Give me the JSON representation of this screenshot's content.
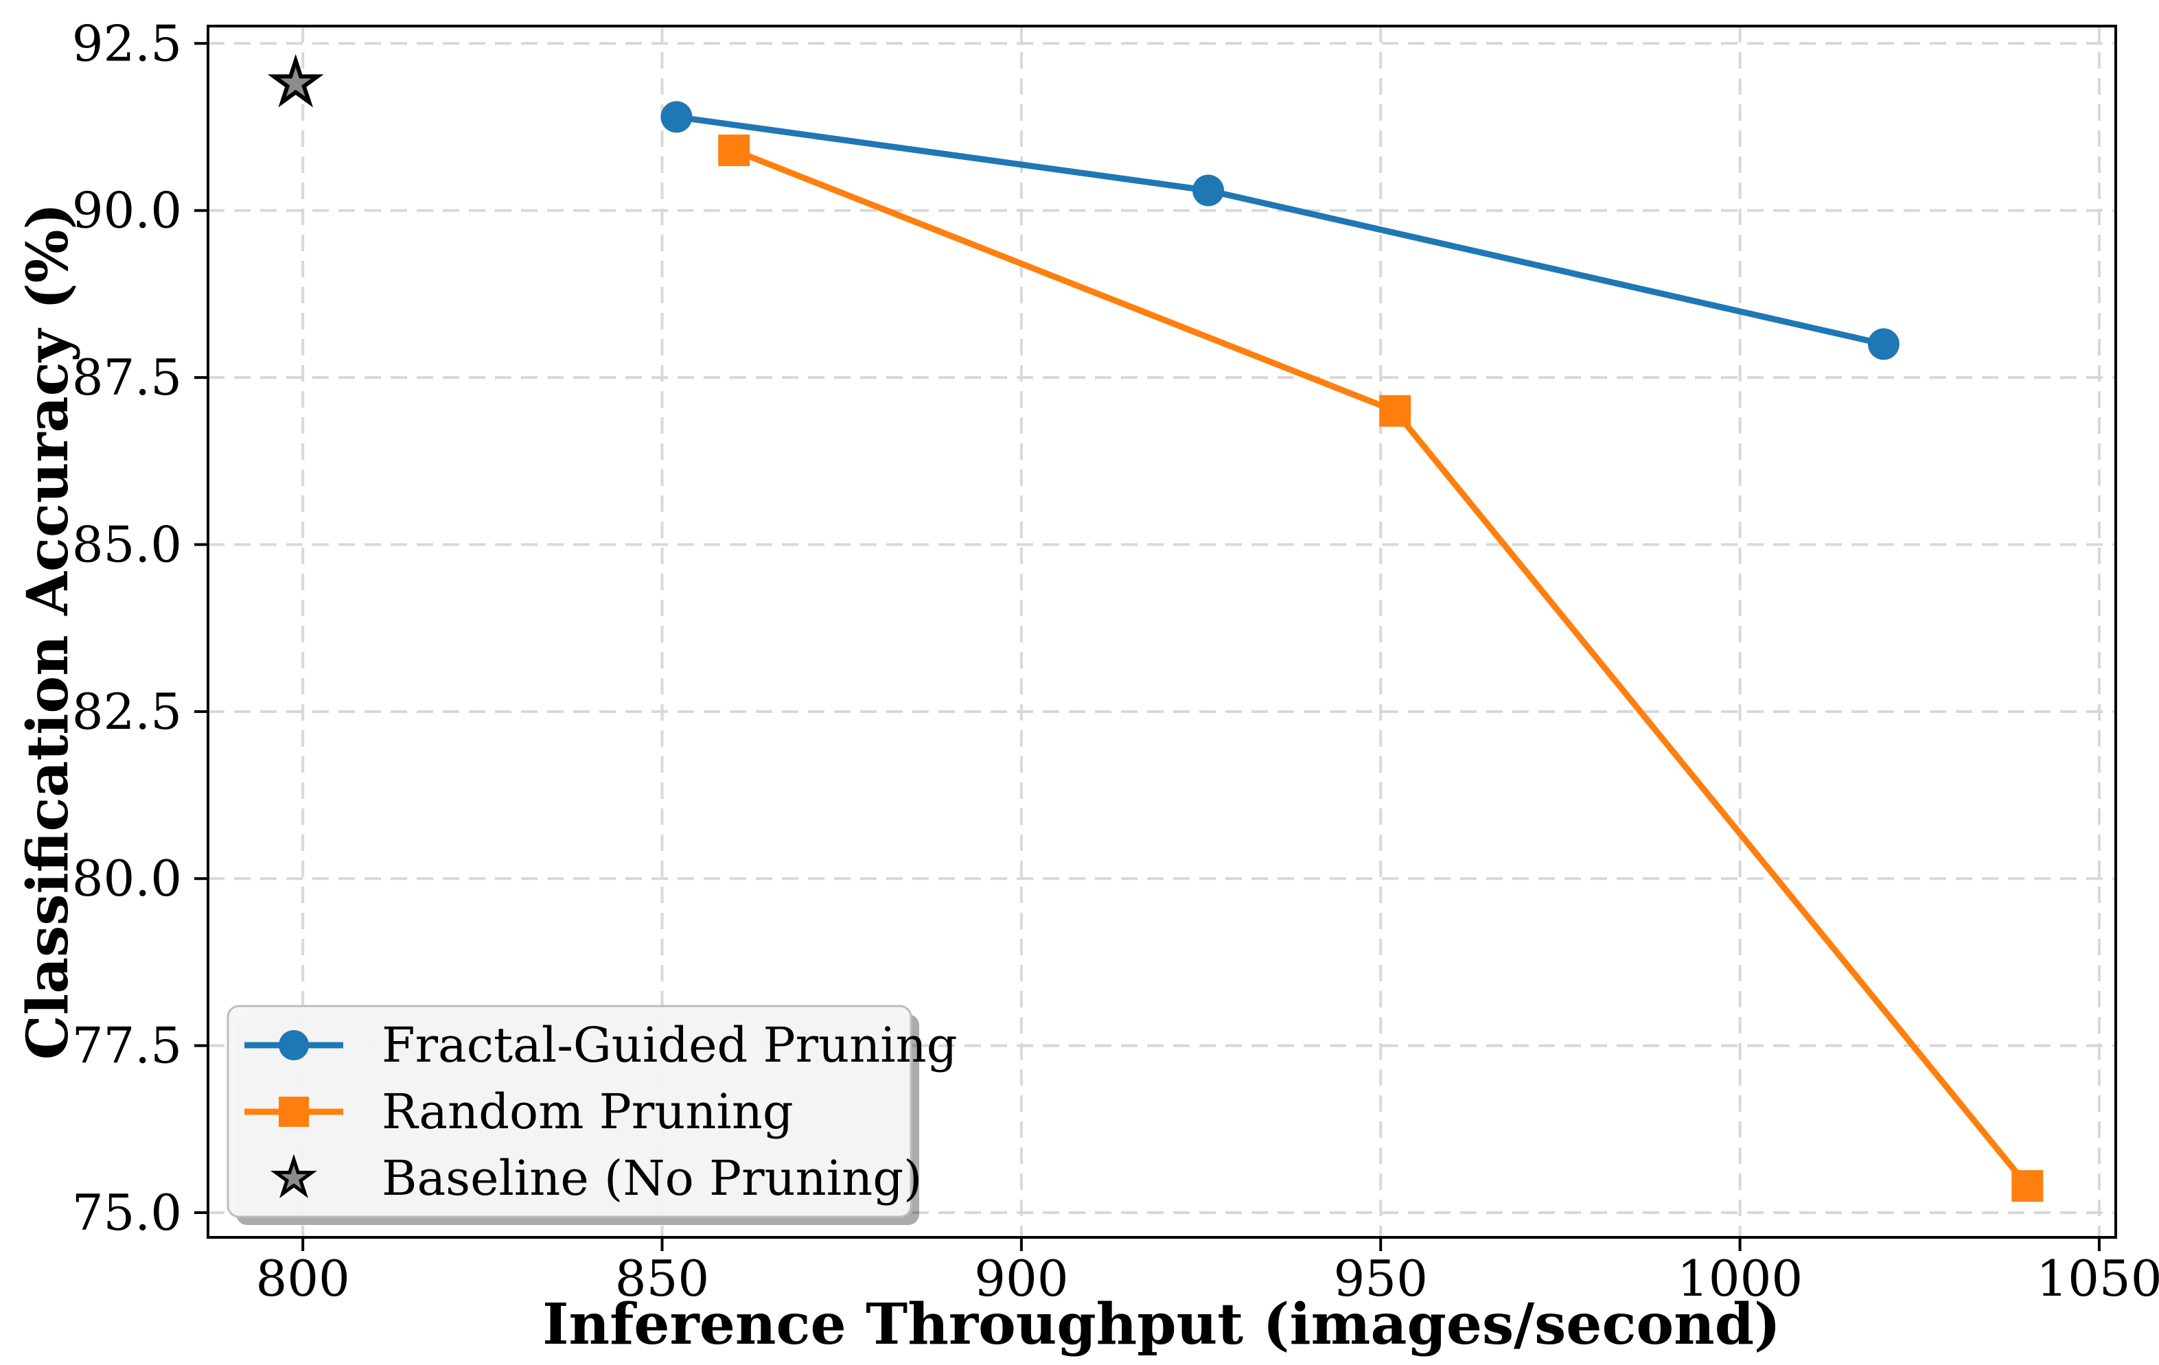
{
  "figure": {
    "background": "#ffffff",
    "frame_color": "#000000"
  },
  "chart_data": {
    "type": "line",
    "title": "",
    "xlabel": "Inference Throughput (images/second)",
    "ylabel": "Classification Accuracy (%)",
    "xlim": [
      786.8,
      1052.3
    ],
    "ylim": [
      74.63,
      92.76
    ],
    "x_ticks": [
      800,
      850,
      900,
      950,
      1000,
      1050
    ],
    "x_tick_labels": [
      "800",
      "850",
      "900",
      "950",
      "1000",
      "1050"
    ],
    "y_ticks": [
      75.0,
      77.5,
      80.0,
      82.5,
      85.0,
      87.5,
      90.0,
      92.5
    ],
    "y_tick_labels": [
      "75.0",
      "77.5",
      "80.0",
      "82.5",
      "85.0",
      "87.5",
      "90.0",
      "92.5"
    ],
    "grid": {
      "visible": true,
      "style": "dashed",
      "color": "#d8d8d8"
    },
    "legend": {
      "position": "lower left",
      "facecolor": "#f6f6f6",
      "edgecolor": "#bdbdbd",
      "shadow_color": "#aaaaaa",
      "entries": [
        0,
        1,
        2
      ]
    },
    "series": [
      {
        "name": "Fractal-Guided Pruning",
        "marker": "circle",
        "color": "#1f77b4",
        "line": true,
        "points": [
          [
            852,
            91.4
          ],
          [
            926,
            90.3
          ],
          [
            1020,
            88.0
          ]
        ]
      },
      {
        "name": "Random Pruning",
        "marker": "square",
        "color": "#ff7f0e",
        "line": true,
        "points": [
          [
            860,
            90.9
          ],
          [
            952,
            87.0
          ],
          [
            1040,
            75.4
          ]
        ]
      },
      {
        "name": "Baseline (No Pruning)",
        "marker": "star",
        "color": "#8c8c8c",
        "edge_color": "#000000",
        "line": false,
        "points": [
          [
            799,
            91.9
          ]
        ]
      }
    ]
  }
}
